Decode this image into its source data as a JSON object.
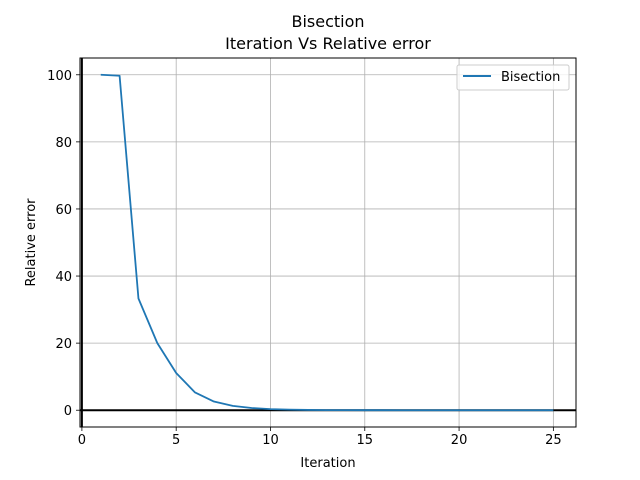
{
  "chart_data": {
    "type": "line",
    "title": "Bisection",
    "subtitle": "Iteration Vs Relative error",
    "xlabel": "Iteration",
    "ylabel": "Relative error",
    "xlim": [
      -0.1,
      26.2
    ],
    "ylim": [
      -5,
      105
    ],
    "xticks": [
      0,
      5,
      10,
      15,
      20,
      25
    ],
    "yticks": [
      0,
      20,
      40,
      60,
      80,
      100
    ],
    "grid": true,
    "legend_position": "top-right",
    "reference_lines": {
      "x": 0,
      "y": 0,
      "color": "#000000"
    },
    "series": [
      {
        "name": "Bisection",
        "color": "#1f77b4",
        "x": [
          1,
          2,
          3,
          4,
          5,
          6,
          7,
          8,
          9,
          10,
          11,
          12,
          13,
          14,
          15,
          16,
          17,
          18,
          19,
          20,
          21,
          22,
          23,
          24,
          25
        ],
        "y": [
          100,
          99.7,
          33.3,
          20.0,
          11.1,
          5.3,
          2.6,
          1.3,
          0.67,
          0.33,
          0.17,
          0.08,
          0.04,
          0.02,
          0.01,
          0.005,
          0.003,
          0.001,
          0.0007,
          0.0003,
          0.0002,
          0.0001,
          4e-05,
          2e-05,
          1e-05
        ]
      }
    ]
  }
}
